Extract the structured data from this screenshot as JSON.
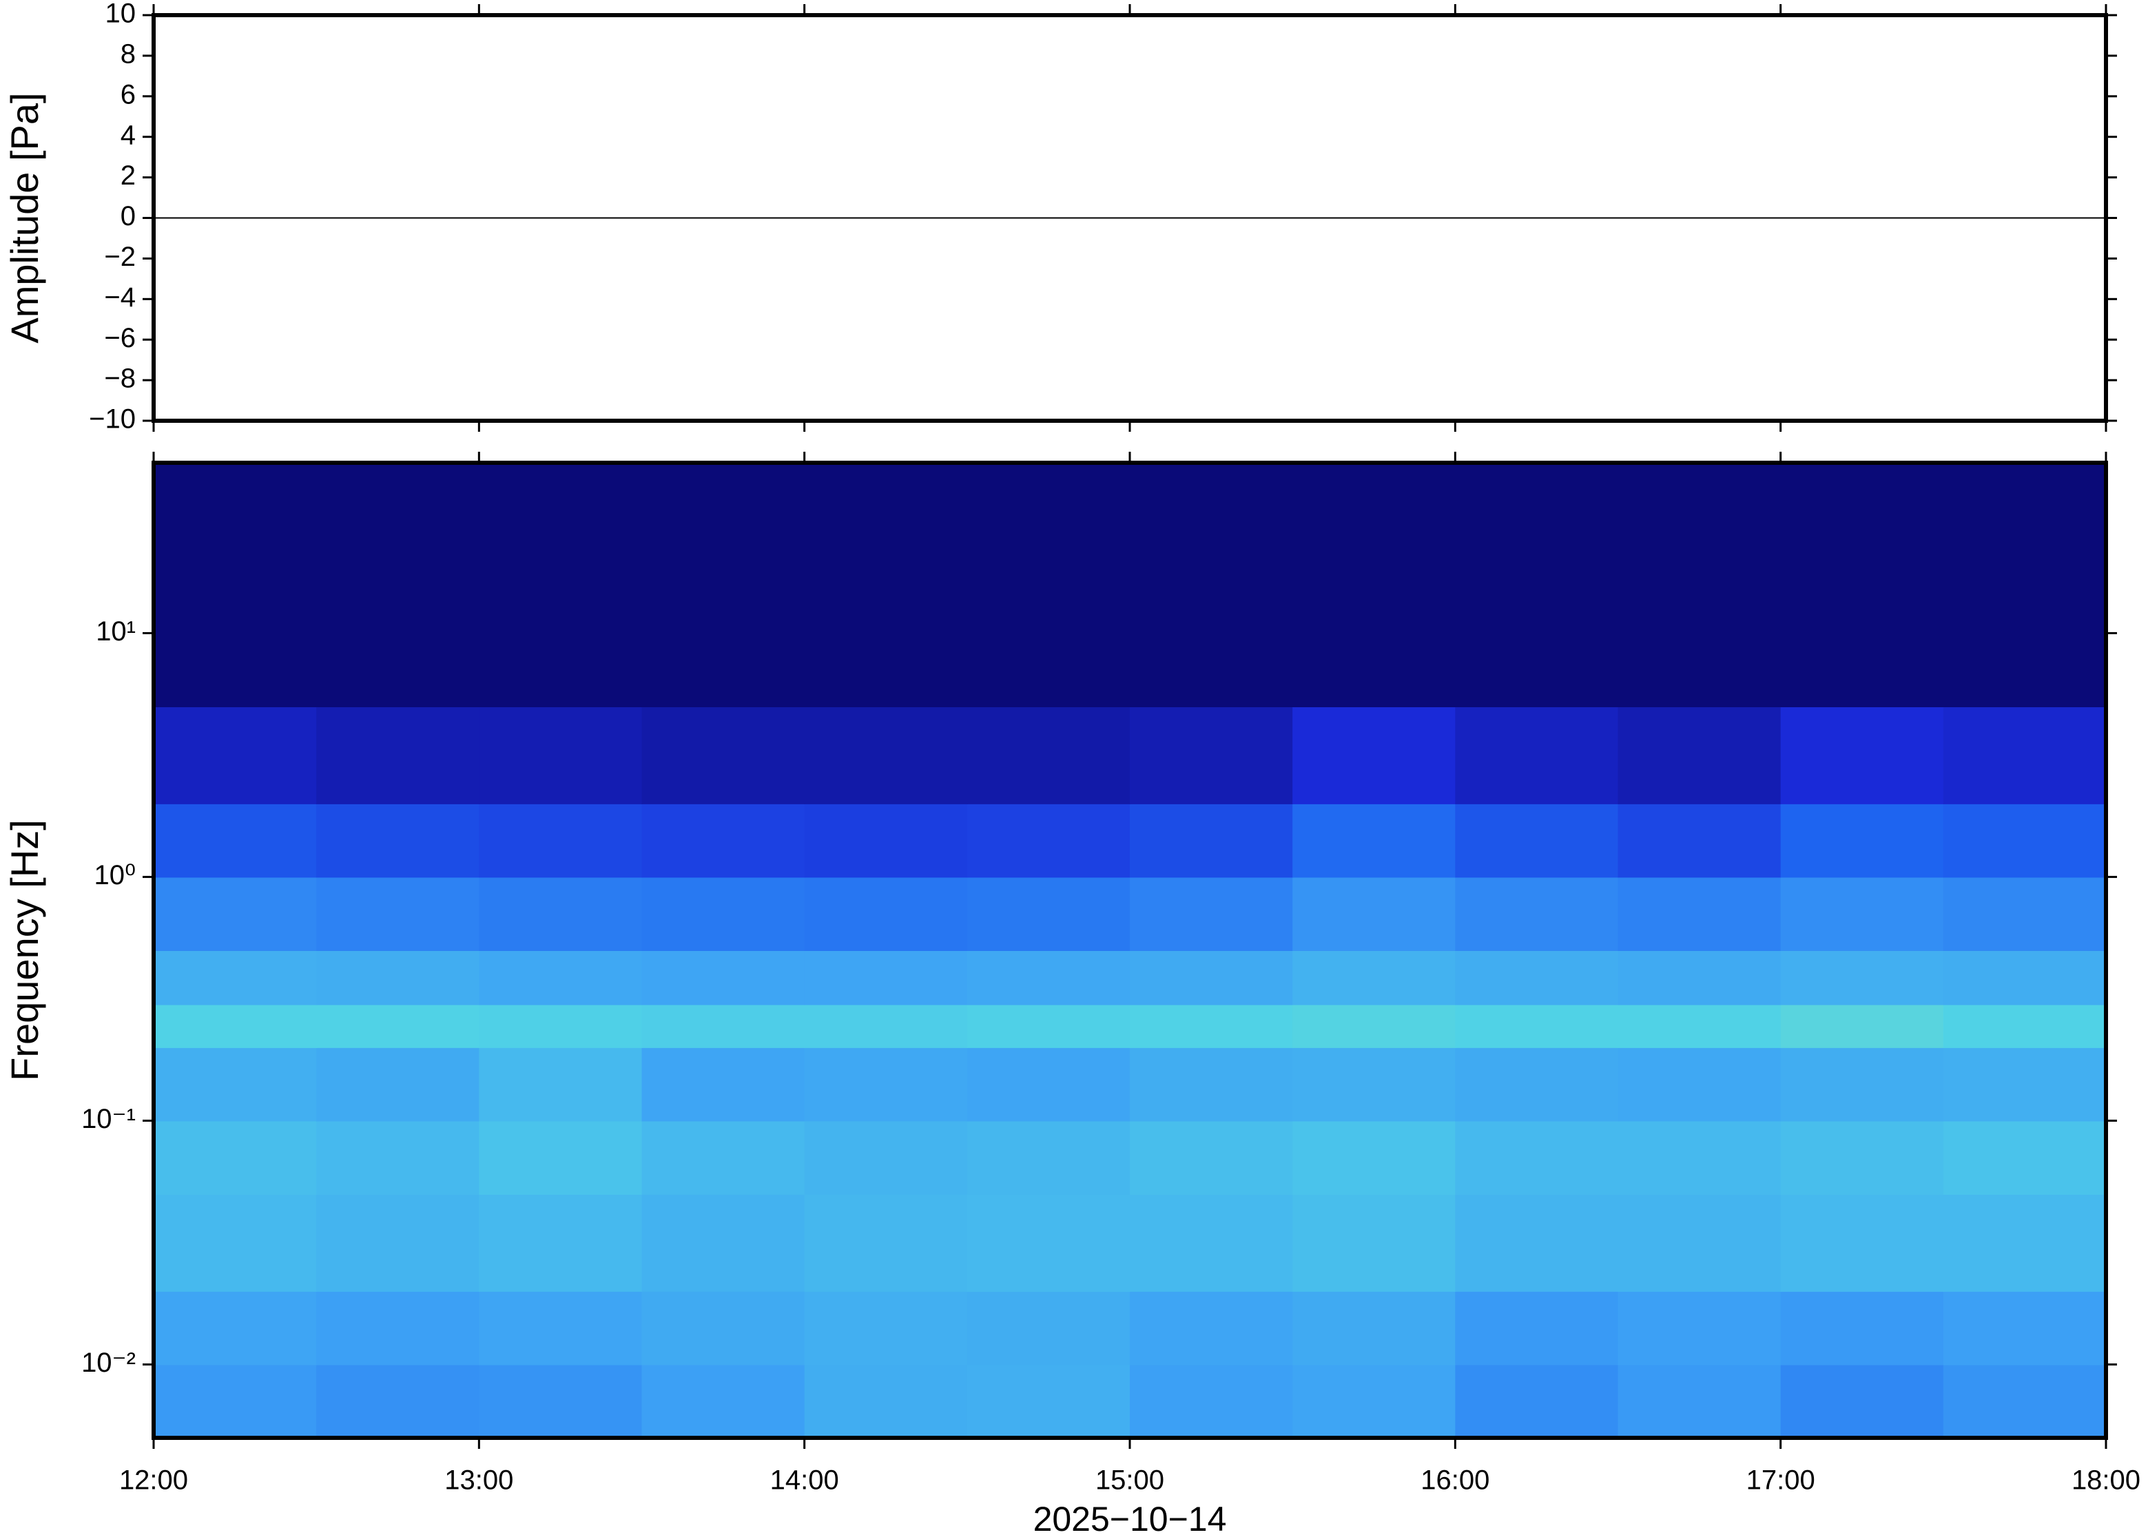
{
  "chart_data": [
    {
      "type": "line",
      "ylabel": "Amplitude [Pa]",
      "x": [
        12,
        18
      ],
      "series": [
        {
          "color": "#000000",
          "values": [
            0,
            0
          ]
        }
      ],
      "xlim": [
        12,
        18
      ],
      "xticks": [
        12,
        13,
        14,
        15,
        16,
        17,
        18
      ],
      "ylim": [
        -10,
        10
      ],
      "yticks": [
        {
          "value": -10,
          "label": "−10"
        },
        {
          "value": -8,
          "label": "−8"
        },
        {
          "value": -6,
          "label": "−6"
        },
        {
          "value": -4,
          "label": "−4"
        },
        {
          "value": -2,
          "label": "−2"
        },
        0,
        2,
        4,
        6,
        8,
        10
      ]
    },
    {
      "type": "heatmap",
      "ylabel": "Frequency [Hz]",
      "xlabel": "2025−10−14",
      "xlim": [
        12,
        18
      ],
      "xticks": [
        {
          "value": 12,
          "label": "12:00"
        },
        {
          "value": 13,
          "label": "13:00"
        },
        {
          "value": 14,
          "label": "14:00"
        },
        {
          "value": 15,
          "label": "15:00"
        },
        {
          "value": 16,
          "label": "16:00"
        },
        {
          "value": 17,
          "label": "17:00"
        },
        {
          "value": 18,
          "label": "18:00"
        }
      ],
      "ylim": [
        0.005,
        50
      ],
      "log_y": true,
      "yticks": [
        {
          "value": 0.01,
          "label": "10⁻²"
        },
        {
          "value": 0.1,
          "label": "10⁻¹"
        },
        {
          "value": 1,
          "label": "10⁰"
        },
        {
          "value": 10,
          "label": "10¹"
        }
      ],
      "x_bins": [
        12,
        12.5,
        13,
        13.5,
        14,
        14.5,
        15,
        15.5,
        16,
        16.5,
        17,
        17.5,
        18
      ],
      "y_bins": [
        0.005,
        0.01,
        0.02,
        0.05,
        0.1,
        0.2,
        0.3,
        0.5,
        1,
        2,
        5,
        50
      ],
      "zlim": [
        0,
        1
      ],
      "colorscale": [
        "#0a0a78",
        "#1a2ad8",
        "#1e64f0",
        "#3ca0f5",
        "#50d2e6",
        "#a8e89a"
      ],
      "z": [
        [
          0.58,
          0.55,
          0.56,
          0.6,
          0.65,
          0.66,
          0.6,
          0.62,
          0.54,
          0.58,
          0.52,
          0.56
        ],
        [
          0.62,
          0.6,
          0.62,
          0.64,
          0.66,
          0.65,
          0.62,
          0.64,
          0.58,
          0.6,
          0.58,
          0.6
        ],
        [
          0.7,
          0.68,
          0.7,
          0.67,
          0.69,
          0.7,
          0.7,
          0.72,
          0.68,
          0.68,
          0.7,
          0.7
        ],
        [
          0.72,
          0.7,
          0.74,
          0.7,
          0.68,
          0.69,
          0.72,
          0.74,
          0.7,
          0.7,
          0.72,
          0.74
        ],
        [
          0.66,
          0.64,
          0.7,
          0.62,
          0.63,
          0.62,
          0.65,
          0.66,
          0.64,
          0.63,
          0.65,
          0.66
        ],
        [
          0.8,
          0.8,
          0.79,
          0.78,
          0.78,
          0.79,
          0.8,
          0.81,
          0.8,
          0.8,
          0.82,
          0.8
        ],
        [
          0.66,
          0.65,
          0.63,
          0.62,
          0.62,
          0.63,
          0.64,
          0.67,
          0.65,
          0.64,
          0.66,
          0.65
        ],
        [
          0.52,
          0.5,
          0.48,
          0.47,
          0.46,
          0.47,
          0.5,
          0.56,
          0.52,
          0.5,
          0.54,
          0.52
        ],
        [
          0.35,
          0.32,
          0.3,
          0.28,
          0.27,
          0.28,
          0.32,
          0.42,
          0.35,
          0.3,
          0.4,
          0.38
        ],
        [
          0.15,
          0.12,
          0.12,
          0.1,
          0.1,
          0.1,
          0.12,
          0.2,
          0.15,
          0.12,
          0.2,
          0.18
        ],
        [
          0,
          0,
          0,
          0,
          0,
          0,
          0,
          0,
          0,
          0,
          0,
          0
        ]
      ]
    }
  ]
}
